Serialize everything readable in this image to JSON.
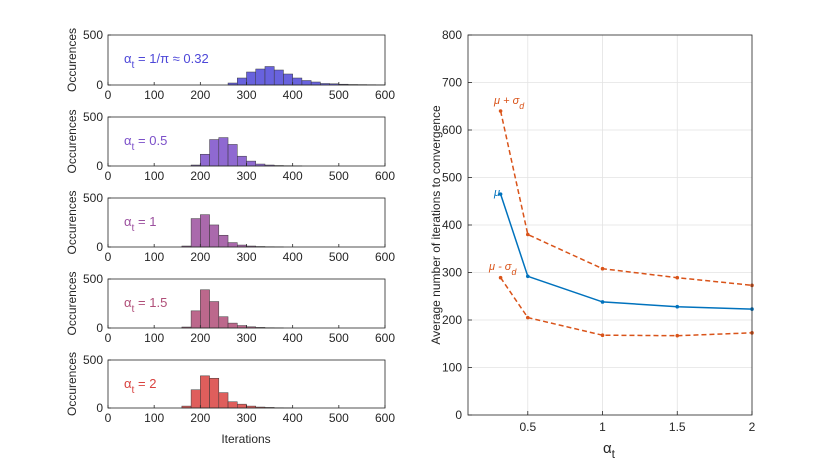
{
  "figure": {
    "histograms": {
      "xlabel": "Iterations",
      "ylabel": "Occurences",
      "xlim": [
        0,
        600
      ],
      "ylim": [
        0,
        500
      ],
      "xticks": [
        0,
        100,
        200,
        300,
        400,
        500,
        600
      ],
      "yticks": [
        0,
        500
      ],
      "xtick_labels": [
        "0",
        "100",
        "200",
        "300",
        "400",
        "500",
        "600"
      ],
      "ytick_labels": [
        "0",
        "500"
      ],
      "panels": [
        {
          "label": "αt = 1/π ≈ 0.32",
          "label_parts": {
            "alpha": "α",
            "sub": "t",
            "rest": " = 1/π ≈ 0.32"
          },
          "color": "#4d47d8",
          "bin_start": 260,
          "bin_width": 20,
          "counts": [
            20,
            70,
            130,
            160,
            185,
            150,
            110,
            70,
            45,
            30,
            15,
            12,
            8,
            5,
            4,
            3,
            2
          ]
        },
        {
          "label": "αt = 0.5",
          "label_parts": {
            "alpha": "α",
            "sub": "t",
            "rest": " = 0.5"
          },
          "color": "#7b4fc9",
          "bin_start": 180,
          "bin_width": 20,
          "counts": [
            10,
            120,
            270,
            290,
            220,
            100,
            50,
            20,
            10,
            5,
            3,
            2
          ]
        },
        {
          "label": "αt = 1",
          "label_parts": {
            "alpha": "α",
            "sub": "t",
            "rest": " = 1"
          },
          "color": "#9b4f9e",
          "bin_start": 160,
          "bin_width": 20,
          "counts": [
            10,
            290,
            330,
            225,
            120,
            45,
            20,
            10,
            5,
            3,
            2
          ]
        },
        {
          "label": "αt = 1.5",
          "label_parts": {
            "alpha": "α",
            "sub": "t",
            "rest": " = 1.5"
          },
          "color": "#b04e78",
          "bin_start": 160,
          "bin_width": 20,
          "counts": [
            10,
            175,
            390,
            270,
            115,
            50,
            25,
            12,
            6,
            3,
            2
          ]
        },
        {
          "label": "αt = 2",
          "label_parts": {
            "alpha": "α",
            "sub": "t",
            "rest": " = 2"
          },
          "color": "#d9423f",
          "bin_start": 160,
          "bin_width": 20,
          "counts": [
            20,
            190,
            335,
            310,
            160,
            65,
            40,
            20,
            10,
            6,
            3,
            2
          ]
        }
      ]
    }
  },
  "chart_data": [
    {
      "type": "bar",
      "title": "αt = 1/π ≈ 0.32",
      "xlabel": "",
      "ylabel": "Occurences",
      "xlim": [
        0,
        600
      ],
      "ylim": [
        0,
        500
      ],
      "bin_width": 20,
      "bin_starts": [
        260,
        280,
        300,
        320,
        340,
        360,
        380,
        400,
        420,
        440,
        460,
        480,
        500,
        520,
        540,
        560,
        580
      ],
      "values": [
        20,
        70,
        130,
        160,
        185,
        150,
        110,
        70,
        45,
        30,
        15,
        12,
        8,
        5,
        4,
        3,
        2
      ]
    },
    {
      "type": "bar",
      "title": "αt = 0.5",
      "xlabel": "",
      "ylabel": "Occurences",
      "xlim": [
        0,
        600
      ],
      "ylim": [
        0,
        500
      ],
      "bin_width": 20,
      "bin_starts": [
        180,
        200,
        220,
        240,
        260,
        280,
        300,
        320,
        340,
        360,
        380,
        400
      ],
      "values": [
        10,
        120,
        270,
        290,
        220,
        100,
        50,
        20,
        10,
        5,
        3,
        2
      ]
    },
    {
      "type": "bar",
      "title": "αt = 1",
      "xlabel": "",
      "ylabel": "Occurences",
      "xlim": [
        0,
        600
      ],
      "ylim": [
        0,
        500
      ],
      "bin_width": 20,
      "bin_starts": [
        160,
        180,
        200,
        220,
        240,
        260,
        280,
        300,
        320,
        340,
        360
      ],
      "values": [
        10,
        290,
        330,
        225,
        120,
        45,
        20,
        10,
        5,
        3,
        2
      ]
    },
    {
      "type": "bar",
      "title": "αt = 1.5",
      "xlabel": "",
      "ylabel": "Occurences",
      "xlim": [
        0,
        600
      ],
      "ylim": [
        0,
        500
      ],
      "bin_width": 20,
      "bin_starts": [
        160,
        180,
        200,
        220,
        240,
        260,
        280,
        300,
        320,
        340,
        360
      ],
      "values": [
        10,
        175,
        390,
        270,
        115,
        50,
        25,
        12,
        6,
        3,
        2
      ]
    },
    {
      "type": "bar",
      "title": "αt = 2",
      "xlabel": "Iterations",
      "ylabel": "Occurences",
      "xlim": [
        0,
        600
      ],
      "ylim": [
        0,
        500
      ],
      "bin_width": 20,
      "bin_starts": [
        160,
        180,
        200,
        220,
        240,
        260,
        280,
        300,
        320,
        340,
        360,
        380
      ],
      "values": [
        20,
        190,
        335,
        310,
        160,
        65,
        40,
        20,
        10,
        6,
        3,
        2
      ]
    },
    {
      "type": "line",
      "title": "",
      "xlabel": "αt",
      "ylabel": "Average number of iterations to convergence",
      "xlim": [
        0.1,
        2
      ],
      "ylim": [
        0,
        800
      ],
      "xticks": [
        0.5,
        1,
        1.5,
        2
      ],
      "xtick_labels": [
        "0.5",
        "1",
        "1.5",
        "2"
      ],
      "yticks": [
        0,
        100,
        200,
        300,
        400,
        500,
        600,
        700,
        800
      ],
      "ytick_labels": [
        "0",
        "100",
        "200",
        "300",
        "400",
        "500",
        "600",
        "700",
        "800"
      ],
      "grid": true,
      "x": [
        0.318,
        0.5,
        1,
        1.5,
        2
      ],
      "series": [
        {
          "name": "μ + σd",
          "label_parts": {
            "main": "μ + σ",
            "sub": "d"
          },
          "color": "#d95319",
          "style": "dashed",
          "values": [
            640,
            380,
            308,
            289,
            273
          ]
        },
        {
          "name": "μ",
          "label_parts": {
            "main": "μ",
            "sub": ""
          },
          "color": "#0072bd",
          "style": "solid",
          "values": [
            465,
            292,
            238,
            228,
            223
          ]
        },
        {
          "name": "μ - σd",
          "label_parts": {
            "main": "μ - σ",
            "sub": "d"
          },
          "color": "#d95319",
          "style": "dashed",
          "values": [
            289,
            205,
            168,
            167,
            173
          ]
        }
      ],
      "xlabel_parts": {
        "main": "α",
        "sub": "t"
      }
    }
  ]
}
